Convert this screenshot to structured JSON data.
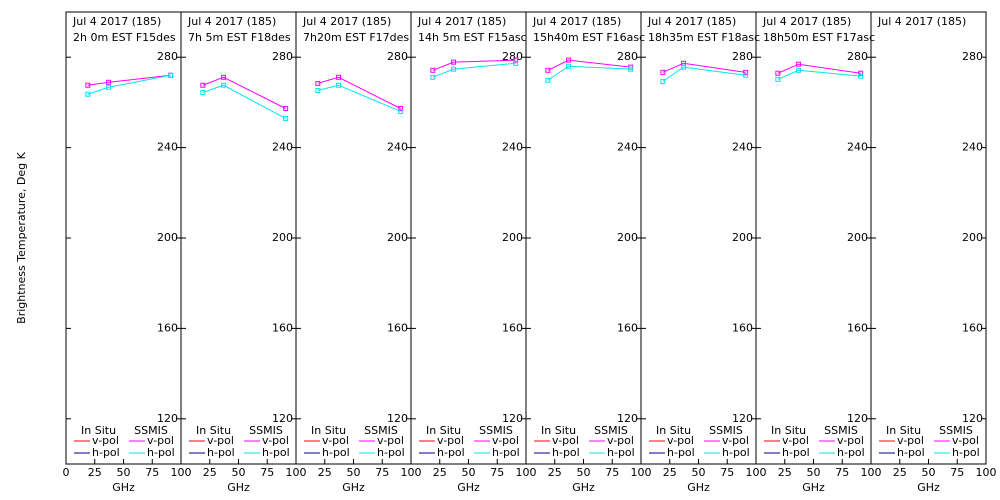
{
  "chart_data": [
    {
      "type": "line",
      "title": "Jul 4 2017 (185)",
      "subtitle": "2h 0m  EST F15des",
      "ylabel": "Brightness Temperature, Deg K",
      "xlabel": "GHz",
      "x": [
        19,
        37,
        91
      ],
      "xlim": [
        0,
        100
      ],
      "xticks": [
        0,
        25,
        50,
        75,
        100
      ],
      "ylim": [
        100,
        300
      ],
      "yticks": [
        120,
        160,
        200,
        240,
        280
      ],
      "series_groups": [
        {
          "name": "In Situ",
          "series": [
            {
              "name": "v-pol",
              "color": "#ff0000",
              "values": [
                null,
                null,
                null
              ]
            },
            {
              "name": "h-pol",
              "color": "#000080",
              "values": [
                null,
                null,
                null
              ]
            }
          ]
        },
        {
          "name": "SSMIS",
          "series": [
            {
              "name": "v-pol",
              "color": "#ff00ff",
              "marker": "square",
              "values": [
                267.6,
                268.9,
                272
              ]
            },
            {
              "name": "h-pol",
              "color": "#00e5ee",
              "marker": "square",
              "values": [
                263.6,
                266.7,
                272
              ]
            }
          ]
        }
      ]
    },
    {
      "type": "line",
      "title": "Jul 4 2017 (185)",
      "subtitle": "7h 5m  EST F18des",
      "xlabel": "GHz",
      "x": [
        19,
        37,
        91
      ],
      "xlim": [
        0,
        100
      ],
      "xticks": [
        25,
        50,
        75,
        100
      ],
      "ylim": [
        100,
        300
      ],
      "yticks": [
        120,
        160,
        200,
        240,
        280
      ],
      "series_groups": [
        {
          "name": "In Situ",
          "series": [
            {
              "name": "v-pol",
              "color": "#ff0000",
              "values": [
                null,
                null,
                null
              ]
            },
            {
              "name": "h-pol",
              "color": "#000080",
              "values": [
                null,
                null,
                null
              ]
            }
          ]
        },
        {
          "name": "SSMIS",
          "series": [
            {
              "name": "v-pol",
              "color": "#ff00ff",
              "marker": "square",
              "values": [
                267.6,
                271.1,
                257.3
              ]
            },
            {
              "name": "h-pol",
              "color": "#00e5ee",
              "marker": "square",
              "values": [
                264.4,
                267.6,
                252.9
              ]
            }
          ]
        }
      ]
    },
    {
      "type": "line",
      "title": "Jul 4 2017 (185)",
      "subtitle": "7h20m  EST F17des",
      "xlabel": "GHz",
      "x": [
        19,
        37,
        91
      ],
      "xlim": [
        0,
        100
      ],
      "xticks": [
        25,
        50,
        75,
        100
      ],
      "ylim": [
        100,
        300
      ],
      "yticks": [
        120,
        160,
        200,
        240,
        280
      ],
      "series_groups": [
        {
          "name": "In Situ",
          "series": [
            {
              "name": "v-pol",
              "color": "#ff0000",
              "values": [
                null,
                null,
                null
              ]
            },
            {
              "name": "h-pol",
              "color": "#000080",
              "values": [
                null,
                null,
                null
              ]
            }
          ]
        },
        {
          "name": "SSMIS",
          "series": [
            {
              "name": "v-pol",
              "color": "#ff00ff",
              "marker": "square",
              "values": [
                268.4,
                271.1,
                257.3
              ]
            },
            {
              "name": "h-pol",
              "color": "#00e5ee",
              "marker": "square",
              "values": [
                265.3,
                267.6,
                256
              ]
            }
          ]
        }
      ]
    },
    {
      "type": "line",
      "title": "Jul 4 2017 (185)",
      "subtitle": "14h 5m  EST F15asc",
      "xlabel": "GHz",
      "x": [
        19,
        37,
        91
      ],
      "xlim": [
        0,
        100
      ],
      "xticks": [
        25,
        50,
        75,
        100
      ],
      "ylim": [
        100,
        300
      ],
      "yticks": [
        120,
        160,
        200,
        240,
        280
      ],
      "series_groups": [
        {
          "name": "In Situ",
          "series": [
            {
              "name": "v-pol",
              "color": "#ff0000",
              "values": [
                null,
                null,
                null
              ]
            },
            {
              "name": "h-pol",
              "color": "#000080",
              "values": [
                null,
                null,
                null
              ]
            }
          ]
        },
        {
          "name": "SSMIS",
          "series": [
            {
              "name": "v-pol",
              "color": "#ff00ff",
              "marker": "square",
              "values": [
                274.2,
                277.8,
                278.7
              ]
            },
            {
              "name": "h-pol",
              "color": "#00e5ee",
              "marker": "square",
              "values": [
                271.1,
                274.7,
                277.3
              ]
            }
          ]
        }
      ]
    },
    {
      "type": "line",
      "title": "Jul 4 2017 (185)",
      "subtitle": "15h40m  EST F16asc",
      "xlabel": "GHz",
      "x": [
        19,
        37,
        91
      ],
      "xlim": [
        0,
        100
      ],
      "xticks": [
        25,
        50,
        75,
        100
      ],
      "ylim": [
        100,
        300
      ],
      "yticks": [
        120,
        160,
        200,
        240,
        280
      ],
      "series_groups": [
        {
          "name": "In Situ",
          "series": [
            {
              "name": "v-pol",
              "color": "#ff0000",
              "values": [
                null,
                null,
                null
              ]
            },
            {
              "name": "h-pol",
              "color": "#000080",
              "values": [
                null,
                null,
                null
              ]
            }
          ]
        },
        {
          "name": "SSMIS",
          "series": [
            {
              "name": "v-pol",
              "color": "#ff00ff",
              "marker": "square",
              "values": [
                274.2,
                278.7,
                275.6
              ]
            },
            {
              "name": "h-pol",
              "color": "#00e5ee",
              "marker": "square",
              "values": [
                269.8,
                276,
                274.7
              ]
            }
          ]
        }
      ]
    },
    {
      "type": "line",
      "title": "Jul 4 2017 (185)",
      "subtitle": "18h35m  EST F18asc",
      "xlabel": "GHz",
      "x": [
        19,
        37,
        91
      ],
      "xlim": [
        0,
        100
      ],
      "xticks": [
        25,
        50,
        75,
        100
      ],
      "ylim": [
        100,
        300
      ],
      "yticks": [
        120,
        160,
        200,
        240,
        280
      ],
      "series_groups": [
        {
          "name": "In Situ",
          "series": [
            {
              "name": "v-pol",
              "color": "#ff0000",
              "values": [
                null,
                null,
                null
              ]
            },
            {
              "name": "h-pol",
              "color": "#000080",
              "values": [
                null,
                null,
                null
              ]
            }
          ]
        },
        {
          "name": "SSMIS",
          "series": [
            {
              "name": "v-pol",
              "color": "#ff00ff",
              "marker": "square",
              "values": [
                273.3,
                277.3,
                273.3
              ]
            },
            {
              "name": "h-pol",
              "color": "#00e5ee",
              "marker": "square",
              "values": [
                269.3,
                275.6,
                272
              ]
            }
          ]
        }
      ]
    },
    {
      "type": "line",
      "title": "Jul 4 2017 (185)",
      "subtitle": "18h50m  EST F17asc",
      "xlabel": "GHz",
      "x": [
        19,
        37,
        91
      ],
      "xlim": [
        0,
        100
      ],
      "xticks": [
        25,
        50,
        75,
        100
      ],
      "ylim": [
        100,
        300
      ],
      "yticks": [
        120,
        160,
        200,
        240,
        280
      ],
      "series_groups": [
        {
          "name": "In Situ",
          "series": [
            {
              "name": "v-pol",
              "color": "#ff0000",
              "values": [
                null,
                null,
                null
              ]
            },
            {
              "name": "h-pol",
              "color": "#000080",
              "values": [
                null,
                null,
                null
              ]
            }
          ]
        },
        {
          "name": "SSMIS",
          "series": [
            {
              "name": "v-pol",
              "color": "#ff00ff",
              "marker": "square",
              "values": [
                272.9,
                276.9,
                272.9
              ]
            },
            {
              "name": "h-pol",
              "color": "#00e5ee",
              "marker": "square",
              "values": [
                270.2,
                274.2,
                271.6
              ]
            }
          ]
        }
      ]
    },
    {
      "type": "line",
      "title": "Jul 4 2017 (185)",
      "xlabel": "GHz",
      "x": [
        19,
        37,
        91
      ],
      "xlim": [
        0,
        100
      ],
      "xticks": [
        25,
        50,
        75,
        100
      ],
      "ylim": [
        100,
        300
      ],
      "yticks": [
        120,
        160,
        200,
        240,
        280
      ],
      "series_groups": [
        {
          "name": "In Situ",
          "series": [
            {
              "name": "v-pol",
              "color": "#ff0000",
              "values": [
                null,
                null,
                null
              ]
            },
            {
              "name": "h-pol",
              "color": "#000080",
              "values": [
                null,
                null,
                null
              ]
            }
          ]
        },
        {
          "name": "SSMIS",
          "series": [
            {
              "name": "v-pol",
              "color": "#ff00ff",
              "marker": "square",
              "values": [
                null,
                null,
                null
              ]
            },
            {
              "name": "h-pol",
              "color": "#00e5ee",
              "marker": "square",
              "values": [
                null,
                null,
                null
              ]
            }
          ]
        }
      ]
    }
  ]
}
